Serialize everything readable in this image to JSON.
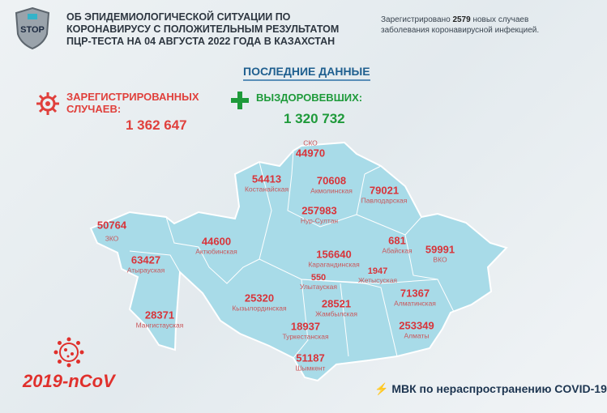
{
  "header": {
    "logo_text": "STOP",
    "title_lines": [
      "ОБ ЭПИДЕМИОЛОГИЧЕСКОЙ СИТУАЦИИ ПО",
      "КОРОНАВИРУСУ С ПОЛОЖИТЕЛЬНЫМ РЕЗУЛЬТАТОМ",
      "ПЦР-ТЕСТА НА 04 АВГУСТА 2022 ГОДА В КАЗАХСТАН"
    ],
    "new_cases_prefix": "Зарегистрировано ",
    "new_cases_count": "2579",
    "new_cases_suffix": " новых случаев",
    "new_cases_line2": "заболевания коронавирусной инфекцией."
  },
  "summary": {
    "heading": "ПОСЛЕДНИЕ ДАННЫЕ",
    "registered_label_1": "ЗАРЕГИСТРИРОВАННЫХ",
    "registered_label_2": "СЛУЧАЕВ:",
    "registered_value": "1 362 647",
    "recovered_label": "ВЫЗДОРОВЕВШИХ:",
    "recovered_value": "1 320 732"
  },
  "regions": [
    {
      "name": "СКО",
      "value": "44970"
    },
    {
      "name": "Костанайская",
      "value": "54413"
    },
    {
      "name": "Акмолинская",
      "value": "70608"
    },
    {
      "name": "Павлодарская",
      "value": "79021"
    },
    {
      "name": "Нур-Султан",
      "value": "257983"
    },
    {
      "name": "ЗКО",
      "value": "50764"
    },
    {
      "name": "Актюбинская",
      "value": "44600"
    },
    {
      "name": "Атырауская",
      "value": "63427"
    },
    {
      "name": "Карагандинская",
      "value": "156640"
    },
    {
      "name": "Абайская",
      "value": "681"
    },
    {
      "name": "ВКО",
      "value": "59991"
    },
    {
      "name": "Жетысуская",
      "value": "1947"
    },
    {
      "name": "Улытауская",
      "value": "550"
    },
    {
      "name": "Алматинская",
      "value": "71367"
    },
    {
      "name": "Кызылординская",
      "value": "25320"
    },
    {
      "name": "Жамбылская",
      "value": "28521"
    },
    {
      "name": "Мангистауская",
      "value": "28371"
    },
    {
      "name": "Туркестанская",
      "value": "18937"
    },
    {
      "name": "Алматы",
      "value": "253349"
    },
    {
      "name": "Шымкент",
      "value": "51187"
    }
  ],
  "footer": {
    "virus_name": "2019-nCoV",
    "organization": "МВК по нераспространению COVID-19"
  },
  "colors": {
    "map_fill": "#a8dbe8",
    "cases_red": "#d8343a",
    "recovered_green": "#1e9a3a",
    "heading_blue": "#1f5f8f"
  }
}
